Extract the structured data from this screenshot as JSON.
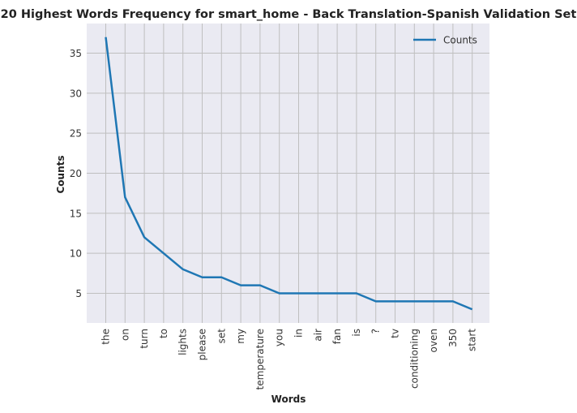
{
  "chart_data": {
    "type": "line",
    "title": "20 Highest Words Frequency for smart_home - Back Translation-Spanish Validation Set",
    "xlabel": "Words",
    "ylabel": "Counts",
    "categories": [
      "the",
      "on",
      "turn",
      "to",
      "lights",
      "please",
      "set",
      "my",
      "temperature",
      "you",
      "in",
      "air",
      "fan",
      "is",
      "?",
      "tv",
      "conditioning",
      "oven",
      "350",
      "start"
    ],
    "series": [
      {
        "name": "Counts",
        "color": "#1f77b4",
        "values": [
          37,
          17,
          12,
          10,
          8,
          7,
          7,
          6,
          6,
          5,
          5,
          5,
          5,
          5,
          4,
          4,
          4,
          4,
          4,
          3
        ]
      }
    ],
    "ylim": [
      1.3,
      38.7
    ],
    "yticks": [
      5,
      10,
      15,
      20,
      25,
      30,
      35
    ],
    "grid": true,
    "legend": "top-right",
    "background_color": "#eaeaf2",
    "grid_color": "#bfbfbf"
  }
}
